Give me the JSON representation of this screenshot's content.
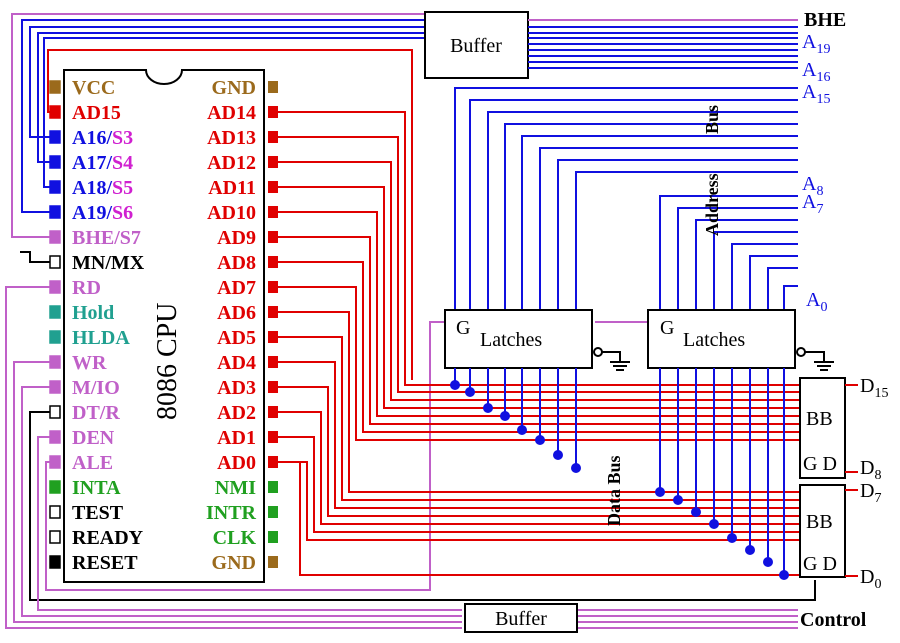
{
  "cpu": {
    "name": "8086 CPU",
    "left_pins": [
      {
        "label": "VCC",
        "extra": "",
        "color": "#9b6a1c"
      },
      {
        "label": "AD15",
        "extra": "",
        "color": "#e00000"
      },
      {
        "label": "A16/",
        "extra": "S3",
        "color": "#1010e0"
      },
      {
        "label": "A17/",
        "extra": "S4",
        "color": "#1010e0"
      },
      {
        "label": "A18/",
        "extra": "S5",
        "color": "#1010e0"
      },
      {
        "label": "A19/",
        "extra": "S6",
        "color": "#1010e0"
      },
      {
        "label": "BHE/S7",
        "extra": "",
        "color": "#c060c8"
      },
      {
        "label": "MN/MX",
        "extra": "",
        "color": "#000000"
      },
      {
        "label": "RD",
        "extra": "",
        "color": "#c060c8"
      },
      {
        "label": "Hold",
        "extra": "",
        "color": "#20a090"
      },
      {
        "label": "HLDA",
        "extra": "",
        "color": "#20a090"
      },
      {
        "label": "WR",
        "extra": "",
        "color": "#c060c8"
      },
      {
        "label": "M/IO",
        "extra": "",
        "color": "#c060c8"
      },
      {
        "label": "DT/R",
        "extra": "",
        "color": "#c060c8"
      },
      {
        "label": "DEN",
        "extra": "",
        "color": "#c060c8"
      },
      {
        "label": "ALE",
        "extra": "",
        "color": "#c060c8"
      },
      {
        "label": "INTA",
        "extra": "",
        "color": "#20a020"
      },
      {
        "label": "TEST",
        "extra": "",
        "color": "#000000"
      },
      {
        "label": "READY",
        "extra": "",
        "color": "#000000"
      },
      {
        "label": "RESET",
        "extra": "",
        "color": "#000000"
      }
    ],
    "right_pins": [
      {
        "label": "GND",
        "color": "#9b6a1c"
      },
      {
        "label": "AD14",
        "color": "#e00000"
      },
      {
        "label": "AD13",
        "color": "#e00000"
      },
      {
        "label": "AD12",
        "color": "#e00000"
      },
      {
        "label": "AD11",
        "color": "#e00000"
      },
      {
        "label": "AD10",
        "color": "#e00000"
      },
      {
        "label": "AD9",
        "color": "#e00000"
      },
      {
        "label": "AD8",
        "color": "#e00000"
      },
      {
        "label": "AD7",
        "color": "#e00000"
      },
      {
        "label": "AD6",
        "color": "#e00000"
      },
      {
        "label": "AD5",
        "color": "#e00000"
      },
      {
        "label": "AD4",
        "color": "#e00000"
      },
      {
        "label": "AD3",
        "color": "#e00000"
      },
      {
        "label": "AD2",
        "color": "#e00000"
      },
      {
        "label": "AD1",
        "color": "#e00000"
      },
      {
        "label": "AD0",
        "color": "#e00000"
      },
      {
        "label": "NMI",
        "color": "#20a020"
      },
      {
        "label": "INTR",
        "color": "#20a020"
      },
      {
        "label": "CLK",
        "color": "#20a020"
      },
      {
        "label": "GND",
        "color": "#9b6a1c"
      }
    ]
  },
  "blocks": {
    "buffer_top": "Buffer",
    "buffer_bottom": "Buffer",
    "latch_g": "G",
    "latch_text": "Latches",
    "bb": "BB",
    "gd": "G D"
  },
  "signals": {
    "bhe": "BHE",
    "a19": "A",
    "a19_sub": "19",
    "a16": "A",
    "a16_sub": "16",
    "a15": "A",
    "a15_sub": "15",
    "a8": "A",
    "a8_sub": "8",
    "a7": "A",
    "a7_sub": "7",
    "a0": "A",
    "a0_sub": "0",
    "d15": "D",
    "d15_sub": "15",
    "d8": "D",
    "d8_sub": "8",
    "d7": "D",
    "d7_sub": "7",
    "d0": "D",
    "d0_sub": "0",
    "control": "Control"
  },
  "bus_labels": {
    "address_part1": "Bus",
    "address_part2": "Address",
    "data": "Data Bus"
  },
  "colors": {
    "address": "#1010e0",
    "data": "#e00000",
    "control": "#c060c8",
    "status_green": "#20a020",
    "hold_teal": "#20a090",
    "power": "#9b6a1c"
  }
}
